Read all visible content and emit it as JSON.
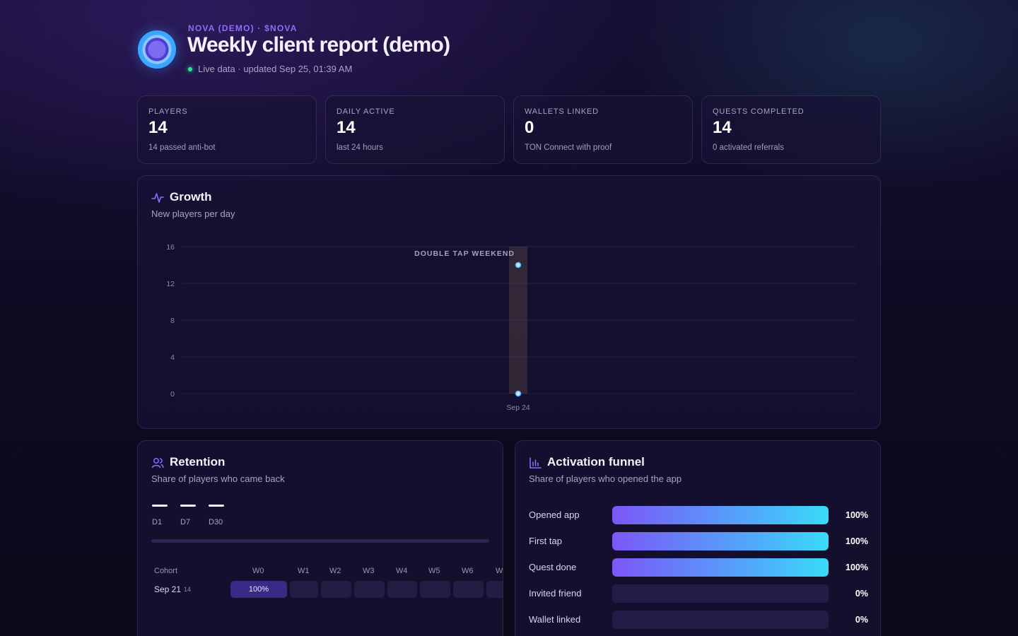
{
  "header": {
    "brand": "NOVA (DEMO) · $NOVA",
    "title": "Weekly client report (demo)",
    "status": "Live data · updated Sep 25, 01:39 AM"
  },
  "stats": [
    {
      "label": "PLAYERS",
      "value": "14",
      "sub": "14 passed anti-bot"
    },
    {
      "label": "DAILY ACTIVE",
      "value": "14",
      "sub": "last 24 hours"
    },
    {
      "label": "WALLETS LINKED",
      "value": "0",
      "sub": "TON Connect with proof"
    },
    {
      "label": "QUESTS COMPLETED",
      "value": "14",
      "sub": "0 activated referrals"
    }
  ],
  "growth": {
    "title": "Growth",
    "subtitle": "New players per day",
    "icon": "activity-icon"
  },
  "chart_data": {
    "type": "line",
    "title": "Growth",
    "subtitle": "New players per day",
    "x": [
      "Sep 24"
    ],
    "series": [
      {
        "values": [
          14
        ]
      },
      {
        "values": [
          0
        ]
      }
    ],
    "ylim": [
      0,
      16
    ],
    "yticks": [
      0,
      4,
      8,
      12,
      16
    ],
    "xtick_labels": [
      "Sep 24"
    ],
    "grid": true,
    "annotations": [
      {
        "label": "DOUBLE TAP WEEKEND",
        "x": "Sep 24",
        "kind": "highlight-band"
      }
    ],
    "colors": {
      "point": "#4fb8ff",
      "band": "#3b2f3a"
    }
  },
  "retention": {
    "title": "Retention",
    "subtitle": "Share of players who came back",
    "icon": "users-icon",
    "metrics": [
      {
        "label": "D1",
        "value": "—"
      },
      {
        "label": "D7",
        "value": "—"
      },
      {
        "label": "D30",
        "value": "—"
      }
    ],
    "cohort_header": "Cohort",
    "weeks": [
      "W0",
      "W1",
      "W2",
      "W3",
      "W4",
      "W5",
      "W6",
      "W"
    ],
    "cohorts": [
      {
        "date": "Sep 21",
        "size": "14",
        "w0": "100%"
      }
    ]
  },
  "funnel": {
    "title": "Activation funnel",
    "subtitle": "Share of players who opened the app",
    "icon": "bar-chart-icon",
    "steps": [
      {
        "label": "Opened app",
        "pct": "100%",
        "value": 1.0
      },
      {
        "label": "First tap",
        "pct": "100%",
        "value": 1.0
      },
      {
        "label": "Quest done",
        "pct": "100%",
        "value": 1.0
      },
      {
        "label": "Invited friend",
        "pct": "0%",
        "value": 0.0
      },
      {
        "label": "Wallet linked",
        "pct": "0%",
        "value": 0.0
      }
    ]
  }
}
